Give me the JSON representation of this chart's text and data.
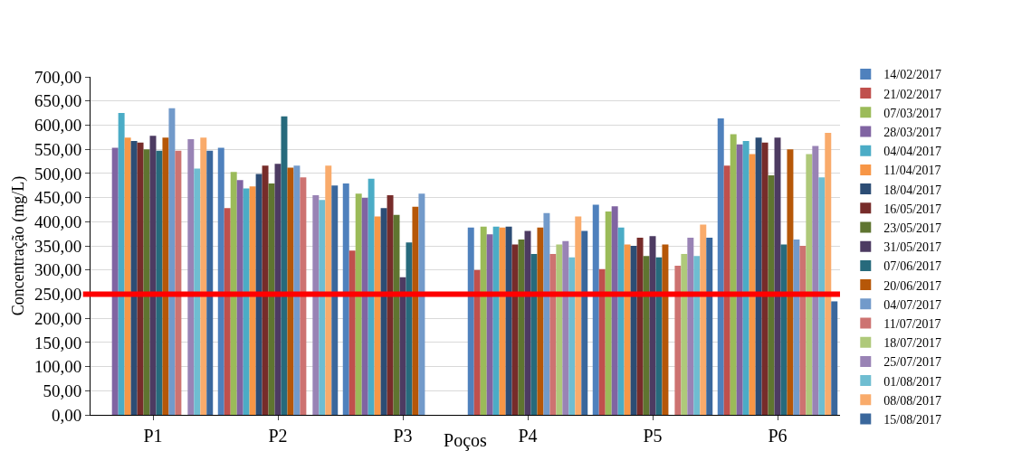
{
  "chart_data": {
    "type": "bar",
    "xlabel": "Poços",
    "ylabel": "Concentração (mg/L)",
    "categories": [
      "P1",
      "P2",
      "P3",
      "P4",
      "P5",
      "P6"
    ],
    "ylim": [
      0,
      700
    ],
    "yticks": [
      {
        "value": 0,
        "label": "0,00"
      },
      {
        "value": 50,
        "label": "50,00"
      },
      {
        "value": 100,
        "label": "100,00"
      },
      {
        "value": 150,
        "label": "150,00"
      },
      {
        "value": 200,
        "label": "200,00"
      },
      {
        "value": 250,
        "label": "250,00"
      },
      {
        "value": 300,
        "label": "300,00"
      },
      {
        "value": 350,
        "label": "350,00"
      },
      {
        "value": 400,
        "label": "400,00"
      },
      {
        "value": 450,
        "label": "450,00"
      },
      {
        "value": 500,
        "label": "500,00"
      },
      {
        "value": 550,
        "label": "550,00"
      },
      {
        "value": 600,
        "label": "600,00"
      },
      {
        "value": 650,
        "label": "650,00"
      },
      {
        "value": 700,
        "label": "700,00"
      }
    ],
    "grid": "y",
    "legend": "right",
    "ref_lines": [
      {
        "axis": "y",
        "value": 250,
        "color": "#ff0000"
      }
    ],
    "series": [
      {
        "name": "14/02/2017",
        "color": "#4f81bd",
        "values": [
          null,
          553,
          479,
          388,
          435,
          614
        ]
      },
      {
        "name": "21/02/2017",
        "color": "#c0504d",
        "values": [
          null,
          428,
          340,
          300,
          302,
          516
        ]
      },
      {
        "name": "07/03/2017",
        "color": "#9bbb59",
        "values": [
          null,
          503,
          458,
          390,
          421,
          581
        ]
      },
      {
        "name": "28/03/2017",
        "color": "#8064a2",
        "values": [
          553,
          486,
          449,
          374,
          432,
          560
        ]
      },
      {
        "name": "04/04/2017",
        "color": "#4bacc6",
        "values": [
          625,
          469,
          489,
          390,
          388,
          567
        ]
      },
      {
        "name": "11/04/2017",
        "color": "#f79646",
        "values": [
          574,
          473,
          411,
          388,
          353,
          540
        ]
      },
      {
        "name": "18/04/2017",
        "color": "#2c4d75",
        "values": [
          567,
          499,
          428,
          390,
          350,
          574
        ]
      },
      {
        "name": "16/05/2017",
        "color": "#772c2a",
        "values": [
          564,
          516,
          455,
          353,
          367,
          564
        ]
      },
      {
        "name": "23/05/2017",
        "color": "#5f7530",
        "values": [
          550,
          479,
          414,
          363,
          329,
          496
        ]
      },
      {
        "name": "31/05/2017",
        "color": "#4d3b62",
        "values": [
          578,
          520,
          285,
          381,
          370,
          574
        ]
      },
      {
        "name": "07/06/2017",
        "color": "#276a7c",
        "values": [
          547,
          618,
          357,
          333,
          326,
          353
        ]
      },
      {
        "name": "20/06/2017",
        "color": "#b65708",
        "values": [
          574,
          512,
          431,
          388,
          353,
          550
        ]
      },
      {
        "name": "04/07/2017",
        "color": "#729aca",
        "values": [
          635,
          516,
          458,
          418,
          null,
          363
        ]
      },
      {
        "name": "11/07/2017",
        "color": "#cd7371",
        "values": [
          547,
          492,
          null,
          333,
          309,
          350
        ]
      },
      {
        "name": "18/07/2017",
        "color": "#afc97a",
        "values": [
          null,
          null,
          null,
          353,
          333,
          540
        ]
      },
      {
        "name": "25/07/2017",
        "color": "#9983b5",
        "values": [
          571,
          455,
          null,
          360,
          367,
          557
        ]
      },
      {
        "name": "01/08/2017",
        "color": "#6fbdd1",
        "values": [
          510,
          445,
          null,
          326,
          329,
          492
        ]
      },
      {
        "name": "08/08/2017",
        "color": "#f9ab6b",
        "values": [
          574,
          516,
          null,
          411,
          394,
          584
        ]
      },
      {
        "name": "15/08/2017",
        "color": "#3a679c",
        "values": [
          547,
          475,
          null,
          381,
          367,
          235
        ]
      }
    ]
  }
}
